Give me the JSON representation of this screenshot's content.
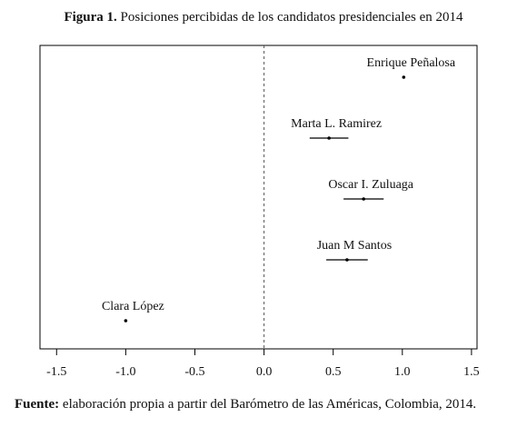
{
  "chart_data": {
    "type": "dot-errorbar",
    "title_label": "Figura 1.",
    "title": "Posiciones percibidas de los candidatos presidenciales en 2014",
    "source_label": "Fuente:",
    "source": "elaboración propia a partir del Barómetro de las Américas, Colombia, 2014.",
    "categories": [
      "Enrique Peñalosa",
      "Marta L. Ramirez",
      "Oscar I. Zuluaga",
      "Juan M Santos",
      "Clara López"
    ],
    "values": [
      1.01,
      0.47,
      0.72,
      0.6,
      -1.0
    ],
    "errors": [
      null,
      0.14,
      0.145,
      0.15,
      null
    ],
    "xlim": [
      -1.62,
      1.54
    ],
    "xticks": [
      -1.5,
      {
        "value": -1.0,
        "label": "-1.0"
      },
      -0.5,
      {
        "value": 0,
        "label": "0.0"
      },
      0.5,
      {
        "value": 1.0,
        "label": "1.0"
      },
      1.5
    ],
    "reference_line": 0,
    "color": "#000000"
  }
}
